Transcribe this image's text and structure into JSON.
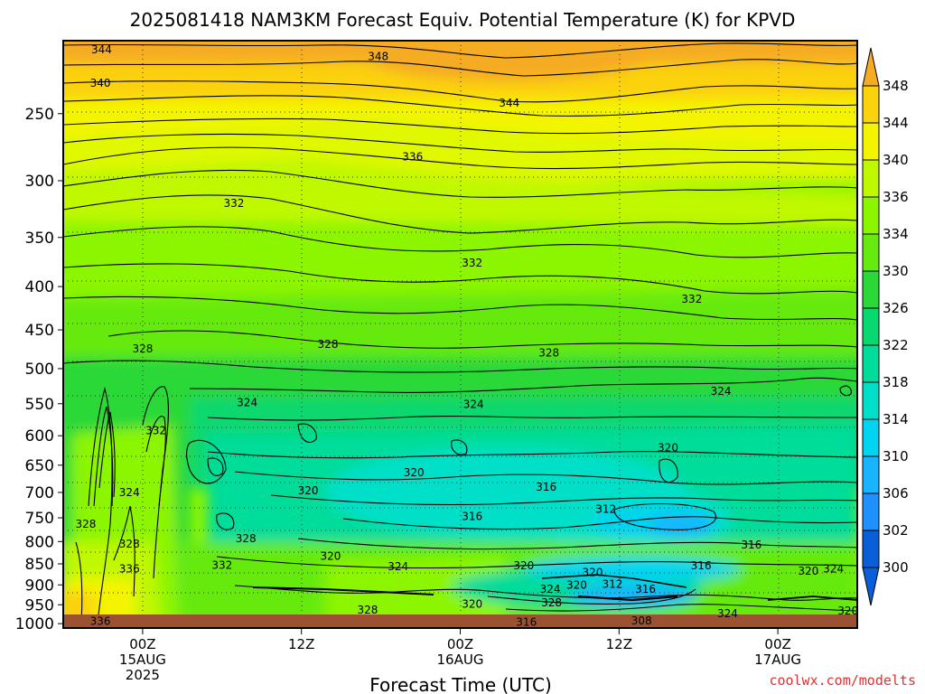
{
  "chart_data": {
    "type": "heatmap",
    "title": "2025081418 NAM3KM Forecast Equiv. Potential Temperature (K) for KPVD",
    "xlabel": "Forecast Time (UTC)",
    "ylabel": "",
    "y_axis": {
      "scale": "log-pressure",
      "ticks": [
        250,
        300,
        350,
        400,
        450,
        500,
        550,
        600,
        650,
        700,
        750,
        800,
        850,
        900,
        950,
        1000
      ],
      "ylim": [
        1012,
        205
      ]
    },
    "x_axis": {
      "xlim_hours": [
        -6,
        54
      ],
      "ticks": [
        {
          "hour": 0,
          "lines": [
            "00Z",
            "15AUG",
            "2025"
          ]
        },
        {
          "hour": 12,
          "lines": [
            "12Z"
          ]
        },
        {
          "hour": 24,
          "lines": [
            "00Z",
            "16AUG"
          ]
        },
        {
          "hour": 36,
          "lines": [
            "12Z"
          ]
        },
        {
          "hour": 48,
          "lines": [
            "00Z",
            "17AUG"
          ]
        }
      ]
    },
    "grid": true,
    "colorbar": {
      "levels": [
        300,
        302,
        306,
        310,
        314,
        318,
        322,
        326,
        330,
        334,
        336,
        340,
        344,
        348
      ],
      "colors": [
        "#0a5fd8",
        "#1e90ff",
        "#18b4ff",
        "#00d4f0",
        "#00e0c8",
        "#00dc9a",
        "#08d870",
        "#2cd838",
        "#66ea10",
        "#8cf500",
        "#c0f800",
        "#f4f400",
        "#fbd20e",
        "#f5ab22"
      ]
    },
    "contour_labels": [
      {
        "hour": -3.1,
        "p": 210,
        "text": "344"
      },
      {
        "hour": -3.2,
        "p": 230,
        "text": "340"
      },
      {
        "hour": 17.8,
        "p": 214,
        "text": "348"
      },
      {
        "hour": 27.7,
        "p": 243,
        "text": "344"
      },
      {
        "hour": 20.4,
        "p": 281,
        "text": "336"
      },
      {
        "hour": 6.9,
        "p": 319,
        "text": "332"
      },
      {
        "hour": 24.9,
        "p": 375,
        "text": "332"
      },
      {
        "hour": 41.5,
        "p": 414,
        "text": "332"
      },
      {
        "hour": 0,
        "p": 474,
        "text": "328"
      },
      {
        "hour": 14.0,
        "p": 468,
        "text": "328"
      },
      {
        "hour": 30.7,
        "p": 479,
        "text": "328"
      },
      {
        "hour": 7.9,
        "p": 548,
        "text": "324"
      },
      {
        "hour": 25.0,
        "p": 551,
        "text": "324"
      },
      {
        "hour": 43.7,
        "p": 532,
        "text": "324"
      },
      {
        "hour": 1.0,
        "p": 592,
        "text": "332"
      },
      {
        "hour": 39.7,
        "p": 620,
        "text": "320"
      },
      {
        "hour": 20.5,
        "p": 663,
        "text": "320"
      },
      {
        "hour": 12.5,
        "p": 697,
        "text": "320"
      },
      {
        "hour": 30.5,
        "p": 690,
        "text": "316"
      },
      {
        "hour": -1.0,
        "p": 700,
        "text": "324"
      },
      {
        "hour": 24.9,
        "p": 747,
        "text": "316"
      },
      {
        "hour": 35.0,
        "p": 733,
        "text": "312"
      },
      {
        "hour": -4.3,
        "p": 763,
        "text": "328"
      },
      {
        "hour": 7.8,
        "p": 794,
        "text": "328"
      },
      {
        "hour": -1.0,
        "p": 805,
        "text": "328"
      },
      {
        "hour": 14.2,
        "p": 832,
        "text": "320"
      },
      {
        "hour": 46.0,
        "p": 807,
        "text": "316"
      },
      {
        "hour": -1.0,
        "p": 862,
        "text": "336"
      },
      {
        "hour": 6.0,
        "p": 853,
        "text": "332"
      },
      {
        "hour": 19.3,
        "p": 856,
        "text": "324"
      },
      {
        "hour": 28.8,
        "p": 854,
        "text": "320"
      },
      {
        "hour": 42.2,
        "p": 854,
        "text": "316"
      },
      {
        "hour": 34.0,
        "p": 870,
        "text": "320"
      },
      {
        "hour": 50.3,
        "p": 867,
        "text": "320"
      },
      {
        "hour": 52.2,
        "p": 862,
        "text": "324"
      },
      {
        "hour": 30.8,
        "p": 910,
        "text": "324"
      },
      {
        "hour": 32.8,
        "p": 900,
        "text": "320"
      },
      {
        "hour": 35.5,
        "p": 898,
        "text": "312"
      },
      {
        "hour": 38.0,
        "p": 910,
        "text": "316"
      },
      {
        "hour": 24.9,
        "p": 948,
        "text": "320"
      },
      {
        "hour": 30.9,
        "p": 945,
        "text": "328"
      },
      {
        "hour": 17.0,
        "p": 963,
        "text": "328"
      },
      {
        "hour": -3.2,
        "p": 994,
        "text": "336"
      },
      {
        "hour": 29.0,
        "p": 996,
        "text": "316"
      },
      {
        "hour": 37.7,
        "p": 992,
        "text": "308"
      },
      {
        "hour": 44.2,
        "p": 973,
        "text": "324"
      },
      {
        "hour": 53.3,
        "p": 966,
        "text": "320"
      }
    ]
  },
  "credit": "coolwx.com/modelts"
}
